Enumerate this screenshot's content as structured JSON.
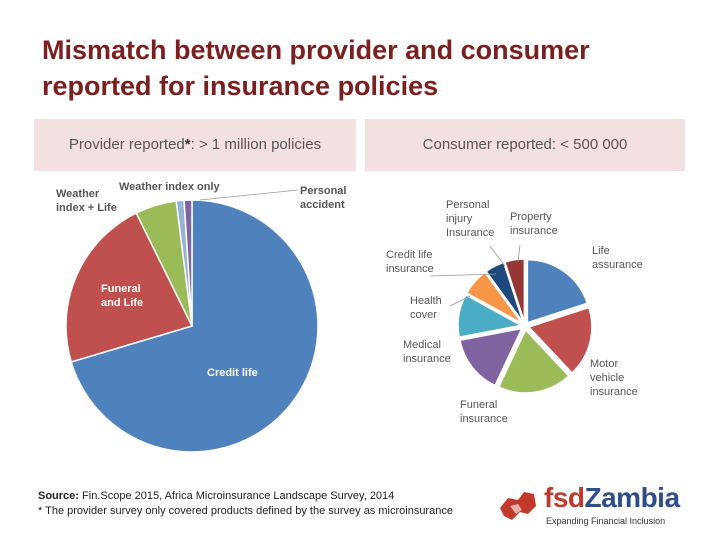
{
  "title": "Mismatch between provider and consumer reported for insurance policies",
  "headers": {
    "left_prefix": "Provider reported",
    "left_star": "*",
    "left_rest": ": > 1 million policies",
    "right_prefix": "Consumer reported",
    "right_rest": ": < 500 000"
  },
  "source": {
    "label": "Source:",
    "text": "Fin.Scope 2015, Africa Microinsurance Landscape Survey, 2014",
    "note": "* The provider survey only covered products defined by the survey as microinsurance"
  },
  "logo": {
    "fsd": "fsd",
    "zambia": "Zambia",
    "tagline": "Expanding Financial Inclusion"
  },
  "colors": {
    "red": "#c0504d",
    "blue": "#4f81bd",
    "green": "#9bbb59",
    "purple": "#8064a2",
    "teal": "#4bacc6",
    "orange": "#f79646",
    "navy": "#1f497d",
    "darkred": "#953735",
    "lightblue": "#95b3d7"
  },
  "chart_data": [
    {
      "type": "pie",
      "title": "Provider reported",
      "series": [
        {
          "name": "Credit life",
          "value": 70.4
        },
        {
          "name": "Funeral and Life",
          "value": 22.3
        },
        {
          "name": "Weather index + Life",
          "value": 5.3
        },
        {
          "name": "Weather index only",
          "value": 1.0
        },
        {
          "name": "Personal accident",
          "value": 1.0
        }
      ]
    },
    {
      "type": "pie",
      "title": "Consumer reported",
      "series": [
        {
          "name": "Life assurance",
          "value": 20.0
        },
        {
          "name": "Motor vehicle insurance",
          "value": 18.0
        },
        {
          "name": "Funeral insurance",
          "value": 19.0
        },
        {
          "name": "Medical insurance",
          "value": 15.0
        },
        {
          "name": "Health cover",
          "value": 11.0
        },
        {
          "name": "Credit life insurance",
          "value": 7.0
        },
        {
          "name": "Personal injury Insurance",
          "value": 5.0
        },
        {
          "name": "Property insurance",
          "value": 5.0
        }
      ]
    }
  ]
}
